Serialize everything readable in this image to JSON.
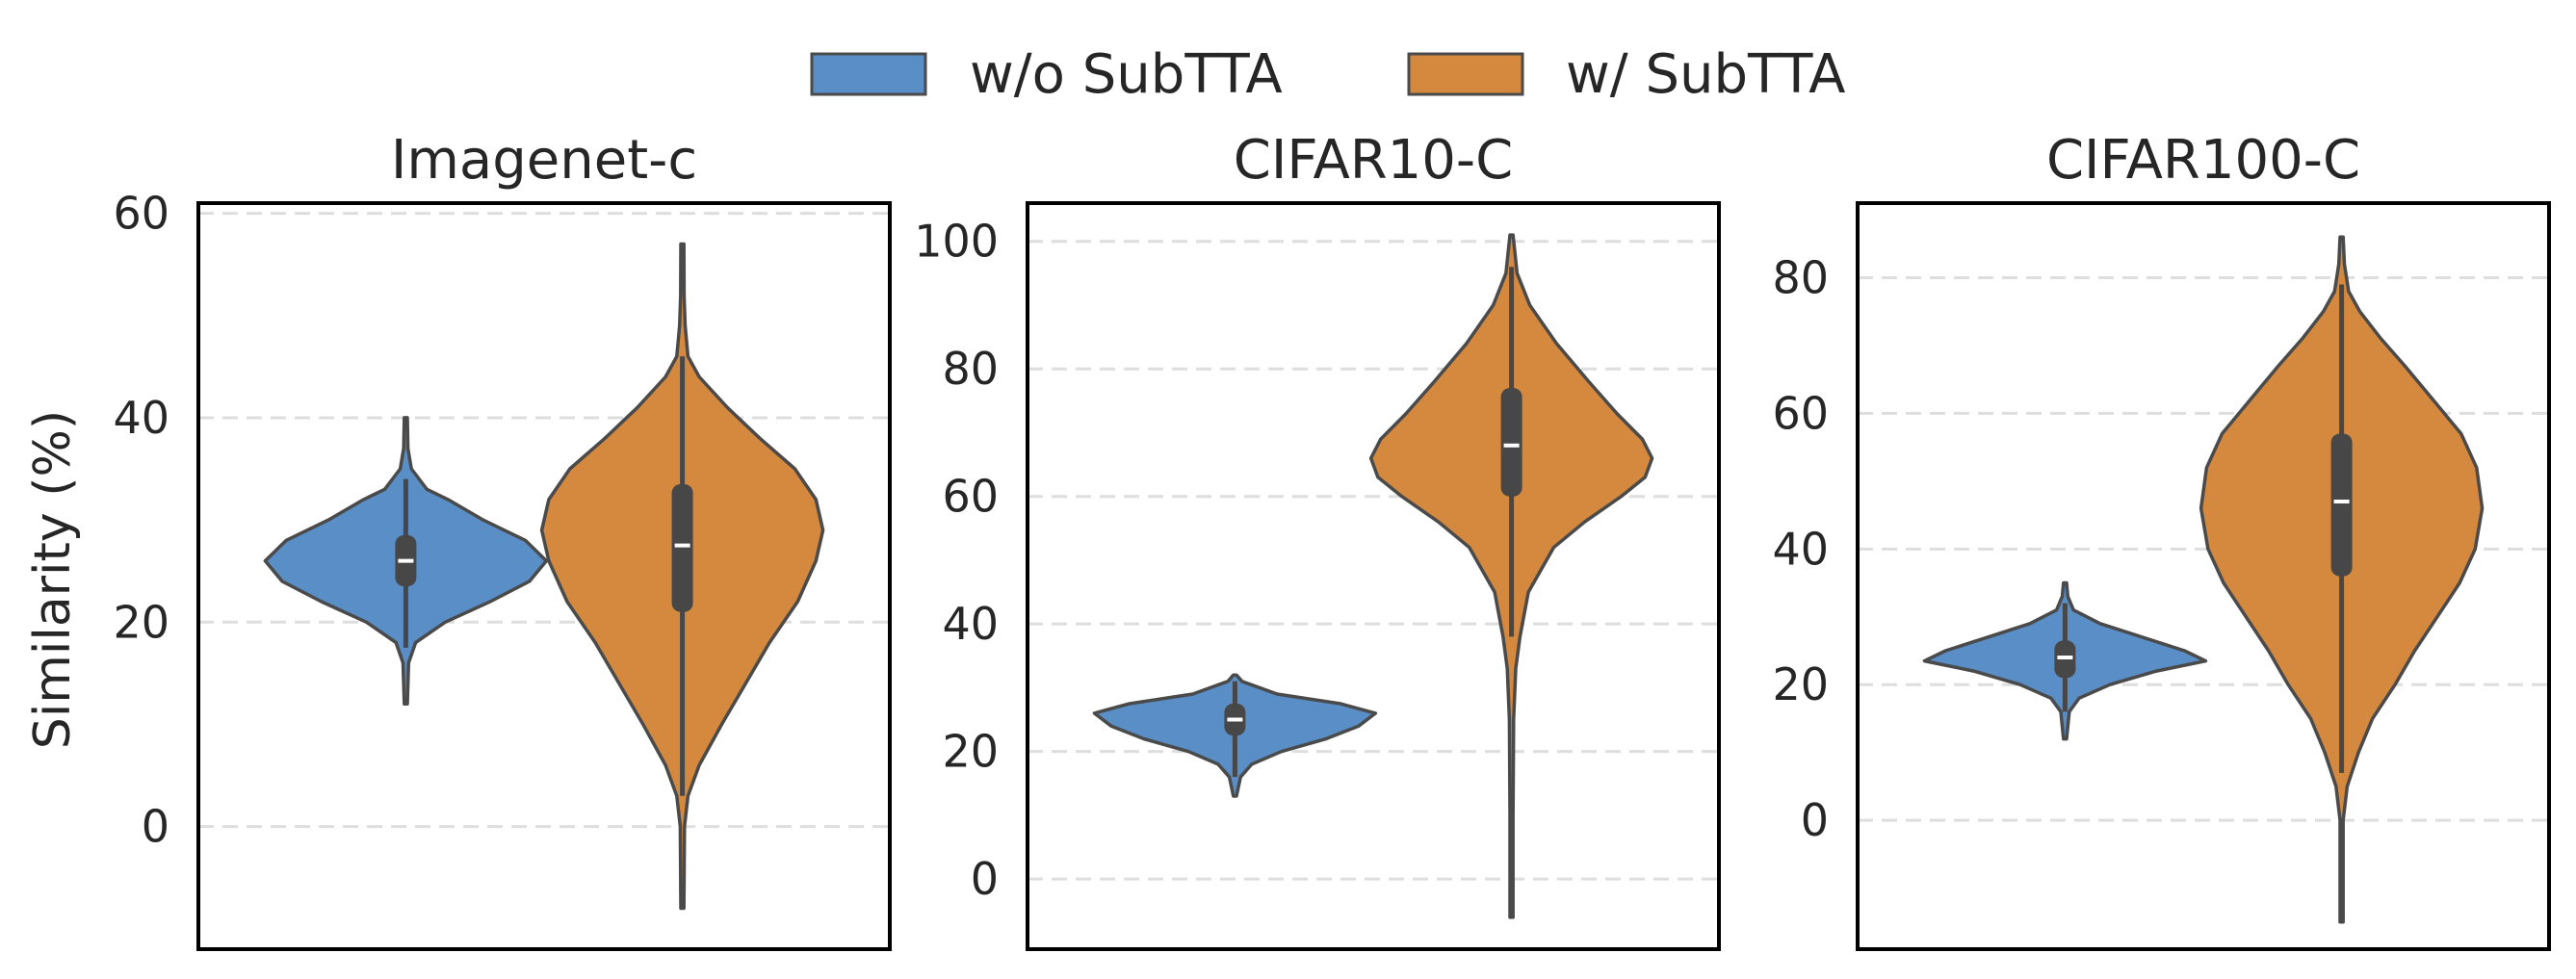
{
  "chart_data": {
    "type": "violin",
    "legend": {
      "placement": "top-center",
      "entries": [
        {
          "label": "w/o SubTTA",
          "color": "#5a8ec7"
        },
        {
          "label": "w/ SubTTA",
          "color": "#d4893f"
        }
      ]
    },
    "ylabel": "Similarity (%)",
    "series_colors": {
      "without": "#5a8ec7",
      "with": "#d4893f"
    },
    "panels": [
      {
        "title": "Imagenet-c",
        "ylim": [
          -12,
          61
        ],
        "yticks": [
          0,
          20,
          40,
          60
        ],
        "grid": true,
        "violins": [
          {
            "series": "w/o SubTTA",
            "color": "#5a8ec7",
            "min": 12,
            "max": 40,
            "q1": 23.5,
            "median": 26,
            "q3": 28.5,
            "whisker_low": 17.5,
            "whisker_high": 34,
            "profile": [
              [
                12,
                0
              ],
              [
                16,
                0.02
              ],
              [
                18,
                0.07
              ],
              [
                20,
                0.28
              ],
              [
                22,
                0.6
              ],
              [
                24,
                0.88
              ],
              [
                26,
                1.0
              ],
              [
                28,
                0.85
              ],
              [
                30,
                0.55
              ],
              [
                32,
                0.3
              ],
              [
                33,
                0.15
              ],
              [
                35,
                0.04
              ],
              [
                37,
                0.015
              ],
              [
                40,
                0
              ]
            ]
          },
          {
            "series": "w/ SubTTA",
            "color": "#d4893f",
            "min": -8,
            "max": 57,
            "q1": 21,
            "median": 27.5,
            "q3": 33.5,
            "whisker_low": 3,
            "whisker_high": 46,
            "profile": [
              [
                -8,
                0
              ],
              [
                0,
                0.015
              ],
              [
                3,
                0.04
              ],
              [
                6,
                0.12
              ],
              [
                10,
                0.28
              ],
              [
                14,
                0.45
              ],
              [
                18,
                0.62
              ],
              [
                22,
                0.82
              ],
              [
                26,
                0.95
              ],
              [
                29,
                1.0
              ],
              [
                32,
                0.95
              ],
              [
                35,
                0.8
              ],
              [
                38,
                0.55
              ],
              [
                41,
                0.32
              ],
              [
                44,
                0.12
              ],
              [
                46,
                0.04
              ],
              [
                49,
                0.02
              ],
              [
                52,
                0.012
              ],
              [
                57,
                0
              ]
            ]
          }
        ]
      },
      {
        "title": "CIFAR10-C",
        "ylim": [
          -11,
          106
        ],
        "yticks": [
          0,
          20,
          40,
          60,
          80,
          100
        ],
        "grid": true,
        "violins": [
          {
            "series": "w/o SubTTA",
            "color": "#5a8ec7",
            "min": 13,
            "max": 32,
            "q1": 22.5,
            "median": 25,
            "q3": 27.5,
            "whisker_low": 16,
            "whisker_high": 31,
            "profile": [
              [
                13,
                0
              ],
              [
                16,
                0.04
              ],
              [
                18,
                0.12
              ],
              [
                20,
                0.33
              ],
              [
                22,
                0.65
              ],
              [
                24,
                0.88
              ],
              [
                26,
                1.0
              ],
              [
                27.5,
                0.75
              ],
              [
                29,
                0.3
              ],
              [
                31,
                0.05
              ],
              [
                32,
                0
              ]
            ]
          },
          {
            "series": "w/ SubTTA",
            "color": "#d4893f",
            "min": -6,
            "max": 101,
            "q1": 60,
            "median": 68,
            "q3": 77,
            "whisker_low": 38,
            "whisker_high": 96,
            "profile": [
              [
                -6,
                0
              ],
              [
                10,
                0.01
              ],
              [
                25,
                0.015
              ],
              [
                33,
                0.03
              ],
              [
                38,
                0.06
              ],
              [
                45,
                0.12
              ],
              [
                52,
                0.3
              ],
              [
                56,
                0.52
              ],
              [
                60,
                0.78
              ],
              [
                63,
                0.95
              ],
              [
                66,
                1.0
              ],
              [
                69,
                0.93
              ],
              [
                73,
                0.75
              ],
              [
                78,
                0.55
              ],
              [
                84,
                0.32
              ],
              [
                90,
                0.13
              ],
              [
                95,
                0.04
              ],
              [
                101,
                0
              ]
            ]
          }
        ]
      },
      {
        "title": "CIFAR100-C",
        "ylim": [
          -19,
          91
        ],
        "yticks": [
          0,
          20,
          40,
          60,
          80
        ],
        "grid": true,
        "violins": [
          {
            "series": "w/o SubTTA",
            "color": "#5a8ec7",
            "min": 12,
            "max": 35,
            "q1": 21,
            "median": 24,
            "q3": 26.5,
            "whisker_low": 16,
            "whisker_high": 32,
            "profile": [
              [
                12,
                0
              ],
              [
                16,
                0.03
              ],
              [
                18,
                0.1
              ],
              [
                20,
                0.32
              ],
              [
                22,
                0.65
              ],
              [
                23.5,
                1.0
              ],
              [
                25,
                0.85
              ],
              [
                27,
                0.55
              ],
              [
                29,
                0.25
              ],
              [
                31,
                0.06
              ],
              [
                33,
                0.02
              ],
              [
                35,
                0
              ]
            ]
          },
          {
            "series": "w/ SubTTA",
            "color": "#d4893f",
            "min": -15,
            "max": 86,
            "q1": 36,
            "median": 47,
            "q3": 57,
            "whisker_low": 7,
            "whisker_high": 79,
            "profile": [
              [
                -15,
                0
              ],
              [
                0,
                0.01
              ],
              [
                5,
                0.04
              ],
              [
                10,
                0.12
              ],
              [
                15,
                0.22
              ],
              [
                20,
                0.38
              ],
              [
                25,
                0.52
              ],
              [
                30,
                0.68
              ],
              [
                35,
                0.84
              ],
              [
                40,
                0.95
              ],
              [
                46,
                1.0
              ],
              [
                52,
                0.96
              ],
              [
                57,
                0.85
              ],
              [
                62,
                0.65
              ],
              [
                67,
                0.45
              ],
              [
                71,
                0.28
              ],
              [
                75,
                0.13
              ],
              [
                78,
                0.05
              ],
              [
                82,
                0.02
              ],
              [
                86,
                0
              ]
            ]
          }
        ]
      }
    ]
  }
}
